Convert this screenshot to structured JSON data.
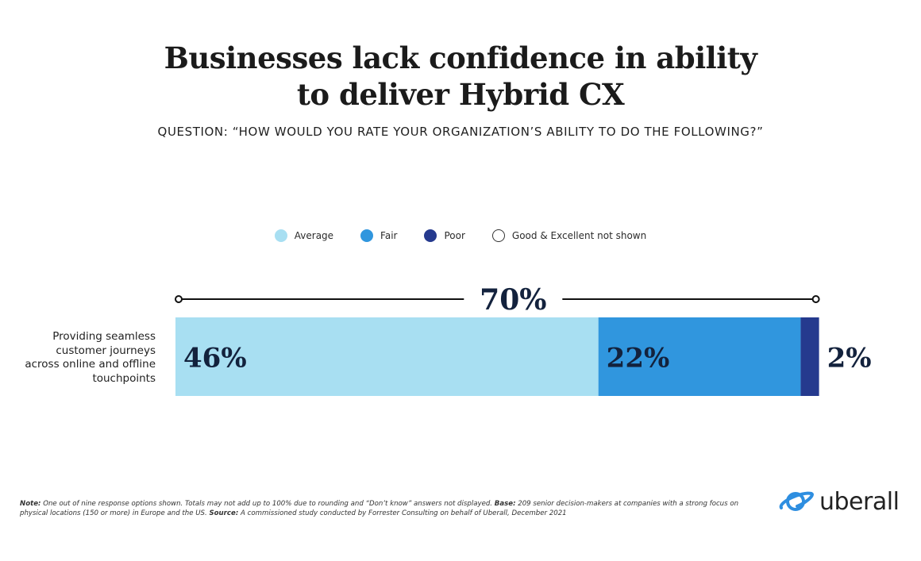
{
  "title_line1": "Businesses lack confidence in ability",
  "title_line2": "to deliver Hybrid CX",
  "question": "QUESTION: “HOW WOULD YOU RATE YOUR ORGANIZATION’S ABILITY TO DO THE FOLLOWING?”",
  "legend": [
    {
      "label": "Average",
      "color": "#a8dff2"
    },
    {
      "label": "Fair",
      "color": "#3096de"
    },
    {
      "label": "Poor",
      "color": "#253a8e"
    },
    {
      "label": "Good & Excellent not shown",
      "color": "#ffffff"
    }
  ],
  "row_label": "Providing seamless customer journeys across online and offline touchpoints",
  "chart_data": {
    "type": "bar",
    "orientation": "horizontal-stacked",
    "categories": [
      "Providing seamless customer journeys across online and offline touchpoints"
    ],
    "series": [
      {
        "name": "Average",
        "values": [
          46
        ],
        "label": "46%"
      },
      {
        "name": "Fair",
        "values": [
          22
        ],
        "label": "22%"
      },
      {
        "name": "Poor",
        "values": [
          2
        ],
        "label": "2%"
      }
    ],
    "total": 70,
    "total_label": "70%",
    "xlim": [
      0,
      70
    ]
  },
  "footnote": {
    "note_label": "Note:",
    "note_text": " One out of nine response options shown. Totals may not add up to 100% due to rounding and “Don’t know” answers not displayed. ",
    "base_label": "Base:",
    "base_text": " 209 senior decision-makers at companies with a strong focus on physical locations (150 or more) in Europe and the US. ",
    "source_label": "Source:",
    "source_text": " A commissioned study conducted by Forrester Consulting on behalf of Uberall, December 2021"
  },
  "logo": {
    "text": "uberall",
    "icon": "planet-ring-icon",
    "color": "#2e8ee0"
  }
}
